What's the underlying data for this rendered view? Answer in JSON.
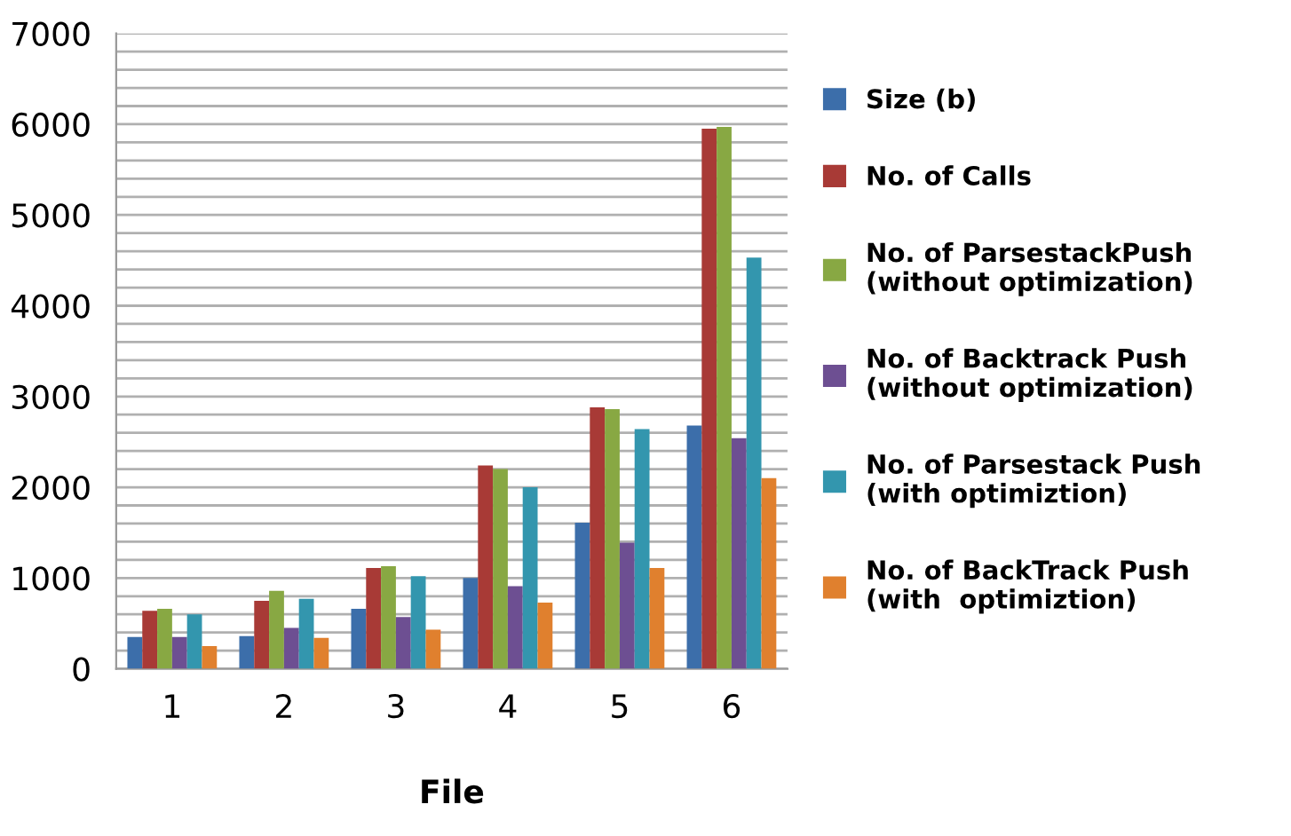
{
  "chart_data": {
    "type": "bar",
    "xlabel": "File",
    "categories": [
      "1",
      "2",
      "3",
      "4",
      "5",
      "6"
    ],
    "series": [
      {
        "name": "Size (b)",
        "color": "#3c6eaa",
        "values": [
          350,
          360,
          660,
          1000,
          1610,
          2680
        ]
      },
      {
        "name": "No. of Calls",
        "color": "#a83a36",
        "values": [
          640,
          750,
          1110,
          2240,
          2880,
          5950
        ]
      },
      {
        "name": "No. of ParsestackPush\n(without optimization)",
        "color": "#88a843",
        "values": [
          660,
          860,
          1130,
          2200,
          2860,
          5970
        ]
      },
      {
        "name": "No. of Backtrack Push\n(without optimization)",
        "color": "#6d4f92",
        "values": [
          350,
          450,
          570,
          910,
          1390,
          2540
        ]
      },
      {
        "name": "No. of Parsestack Push\n(with optimiztion)",
        "color": "#3396ae",
        "values": [
          600,
          770,
          1020,
          2000,
          2640,
          4530
        ]
      },
      {
        "name": "No. of BackTrack Push\n(with  optimiztion)",
        "color": "#e0802e",
        "values": [
          250,
          340,
          430,
          730,
          1110,
          2100
        ]
      }
    ],
    "ylim": [
      0,
      7000
    ],
    "yticks": [
      0,
      {
        "value": 200,
        "label": null
      },
      {
        "value": 400,
        "label": null
      },
      {
        "value": 600,
        "label": null
      },
      {
        "value": 800,
        "label": null
      },
      1000,
      {
        "value": 1200,
        "label": null
      },
      {
        "value": 1400,
        "label": null
      },
      {
        "value": 1600,
        "label": null
      },
      {
        "value": 1800,
        "label": null
      },
      2000,
      {
        "value": 2200,
        "label": null
      },
      {
        "value": 2400,
        "label": null
      },
      {
        "value": 2600,
        "label": null
      },
      {
        "value": 2800,
        "label": null
      },
      3000,
      {
        "value": 3200,
        "label": null
      },
      {
        "value": 3400,
        "label": null
      },
      {
        "value": 3600,
        "label": null
      },
      {
        "value": 3800,
        "label": null
      },
      4000,
      {
        "value": 4200,
        "label": null
      },
      {
        "value": 4400,
        "label": null
      },
      {
        "value": 4600,
        "label": null
      },
      {
        "value": 4800,
        "label": null
      },
      5000,
      {
        "value": 5200,
        "label": null
      },
      {
        "value": 5400,
        "label": null
      },
      {
        "value": 5600,
        "label": null
      },
      {
        "value": 5800,
        "label": null
      },
      6000,
      {
        "value": 6200,
        "label": null
      },
      {
        "value": 6400,
        "label": null
      },
      {
        "value": 6600,
        "label": null
      },
      {
        "value": 6800,
        "label": null
      },
      7000
    ],
    "grid": "y",
    "legend": "right"
  }
}
